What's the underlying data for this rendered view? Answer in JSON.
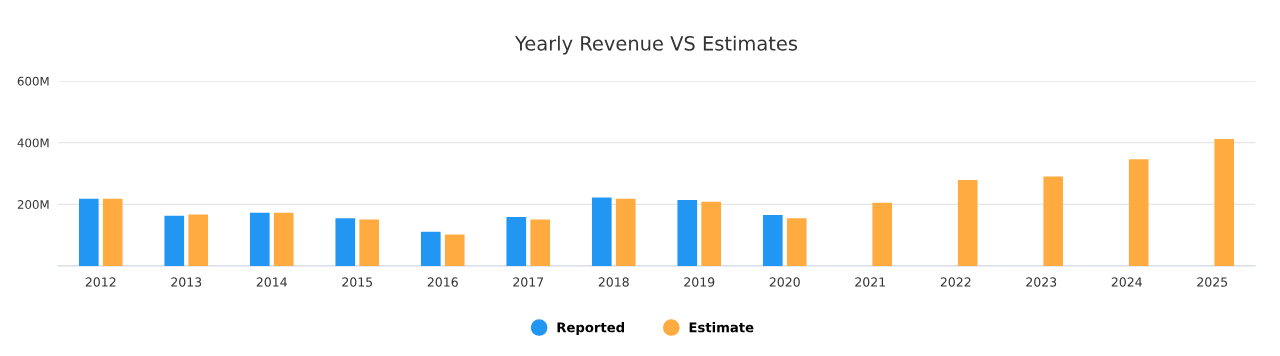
{
  "chart_data": {
    "type": "bar",
    "title": "Yearly Revenue VS Estimates",
    "categories": [
      "2012",
      "2013",
      "2014",
      "2015",
      "2016",
      "2017",
      "2018",
      "2019",
      "2020",
      "2021",
      "2022",
      "2023",
      "2024",
      "2025"
    ],
    "series": [
      {
        "name": "Reported",
        "color": "#2196f3",
        "values": [
          218,
          163,
          173,
          155,
          111,
          159,
          222,
          214,
          165,
          null,
          null,
          null,
          null,
          null
        ]
      },
      {
        "name": "Estimate",
        "color": "#ffab40",
        "values": [
          218,
          167,
          173,
          151,
          102,
          151,
          218,
          208,
          155,
          205,
          279,
          290,
          346,
          412
        ]
      }
    ],
    "ylim": [
      0,
      600
    ],
    "yticks": [
      {
        "value": 0,
        "label": null
      },
      {
        "value": 200,
        "label": "200M"
      },
      {
        "value": 400,
        "label": "400M"
      },
      {
        "value": 600,
        "label": "600M"
      }
    ],
    "grid": "y",
    "legend": "bottom"
  }
}
